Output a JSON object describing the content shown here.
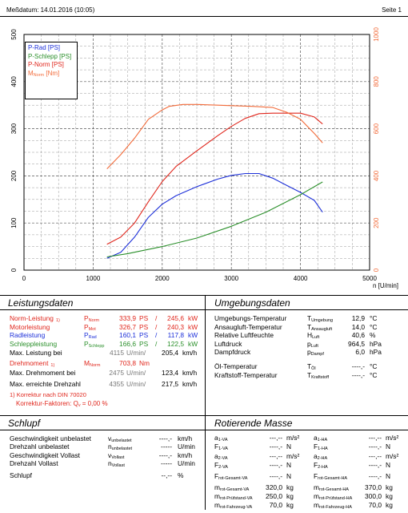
{
  "header": {
    "date_label": "Meßdatum: 14.01.2016 (10:05)",
    "page_label": "Seite 1"
  },
  "chart_data": {
    "type": "line",
    "x_unit_label": "n [U/min]",
    "xlim": [
      0,
      5000
    ],
    "xticks": [
      "0",
      "1000",
      "2000",
      "3000",
      "4000",
      "5000"
    ],
    "ylim_left": [
      0,
      500
    ],
    "yticks_left": [
      "0",
      "100",
      "200",
      "300",
      "400",
      "500"
    ],
    "ylim_right": [
      0,
      1000
    ],
    "yticks_right": [
      "0",
      "200",
      "400",
      "600",
      "800",
      "1000"
    ],
    "grid": true,
    "legend_position": "top-left",
    "series": [
      {
        "name": "P-Rad [PS]",
        "color": "#1c2fd9",
        "axis": "left",
        "x": [
          1200,
          1400,
          1600,
          1800,
          2000,
          2200,
          2500,
          2800,
          3000,
          3200,
          3400,
          3600,
          3800,
          4000,
          4200,
          4320
        ],
        "y": [
          25,
          38,
          70,
          112,
          140,
          158,
          177,
          193,
          201,
          205,
          205,
          195,
          180,
          165,
          148,
          123
        ]
      },
      {
        "name": "P-Schlepp [PS]",
        "color": "#2a8f2a",
        "axis": "left",
        "x": [
          1200,
          1500,
          2000,
          2500,
          3000,
          3500,
          4000,
          4320
        ],
        "y": [
          28,
          35,
          50,
          68,
          93,
          123,
          160,
          187
        ]
      },
      {
        "name": "P-Norm [PS]",
        "color": "#e0261c",
        "axis": "left",
        "x": [
          1200,
          1400,
          1600,
          1800,
          2000,
          2200,
          2500,
          2800,
          3000,
          3200,
          3400,
          3600,
          3800,
          4000,
          4200,
          4320
        ],
        "y": [
          55,
          70,
          100,
          145,
          188,
          220,
          253,
          285,
          305,
          322,
          332,
          333,
          333,
          333,
          325,
          310
        ]
      },
      {
        "name": "M",
        "name_sub": "Norm",
        "name_unit": " [Nm]",
        "color": "#f26b3a",
        "axis": "right",
        "x": [
          1200,
          1400,
          1600,
          1800,
          2000,
          2100,
          2300,
          2500,
          2800,
          3000,
          3300,
          3600,
          3800,
          4000,
          4200,
          4320
        ],
        "y": [
          430,
          490,
          560,
          640,
          680,
          695,
          703,
          703,
          700,
          698,
          695,
          690,
          670,
          640,
          580,
          540
        ]
      }
    ]
  },
  "leistung": {
    "title": "Leistungsdaten",
    "rows": [
      {
        "label": "Norm-Leistung",
        "fn": "1)",
        "sym": "P",
        "sym_sub": "Norm",
        "v1": "333,9",
        "u1": "PS",
        "sep": "/",
        "v2": "245,6",
        "u2": "kW",
        "color": "red"
      },
      {
        "label": "Motorleistung",
        "fn": "",
        "sym": "P",
        "sym_sub": "Mot",
        "v1": "326,7",
        "u1": "PS",
        "sep": "/",
        "v2": "240,3",
        "u2": "kW",
        "color": "red"
      },
      {
        "label": "Radleistung",
        "fn": "",
        "sym": "P",
        "sym_sub": "Rad",
        "v1": "160,1",
        "u1": "PS",
        "sep": "/",
        "v2": "117,8",
        "u2": "kW",
        "color": "blue"
      },
      {
        "label": "Schleppleistung",
        "fn": "",
        "sym": "P",
        "sym_sub": "Schlepp",
        "v1": "166,6",
        "u1": "PS",
        "sep": "/",
        "v2": "122,5",
        "u2": "kW",
        "color": "green"
      }
    ],
    "max_leistung": {
      "label": "Max. Leistung bei",
      "rpm": "4115",
      "rpm_unit": "U/min/",
      "val": "205,4",
      "unit": "km/h"
    },
    "drehmoment": {
      "label": "Drehmoment",
      "fn": "1)",
      "sym": "M",
      "sym_sub": "Norm",
      "val": "703,8",
      "unit": "Nm"
    },
    "max_drehmoment": {
      "label": "Max. Drehmoment bei",
      "rpm": "2475",
      "rpm_unit": "U/min/",
      "val": "123,4",
      "unit": "km/h"
    },
    "max_drehzahl": {
      "label": "Max. erreichte Drehzahl",
      "rpm": "4355",
      "rpm_unit": "U/min/",
      "val": "217,5",
      "unit": "km/h"
    },
    "korrektur": {
      "line1": "1) Korrektur nach DIN 70020",
      "line2_a": "Korrektur-Faktoren: Q",
      "line2_sub": "v",
      "line2_b": " =   0,00 %"
    }
  },
  "umgebung": {
    "title": "Umgebungsdaten",
    "rows": [
      {
        "label": "Umgebungs-Temperatur",
        "sym": "T",
        "sym_sub": "Umgebung",
        "val": "12,9",
        "unit": "°C"
      },
      {
        "label": "Ansaugluft-Temperatur",
        "sym": "T",
        "sym_sub": "Ansaugluft",
        "val": "14,0",
        "unit": "°C"
      },
      {
        "label": "Relative Luftfeuchte",
        "sym": "H",
        "sym_sub": "Luft",
        "val": "40,6",
        "unit": "%"
      },
      {
        "label": "Luftdruck",
        "sym": "p",
        "sym_sub": "Luft",
        "val": "964,5",
        "unit": "hPa"
      },
      {
        "label": "Dampfdruck",
        "sym": "p",
        "sym_sub": "Dampf",
        "val": "6,0",
        "unit": "hPa"
      },
      {
        "label": "Öl-Temperatur",
        "sym": "T",
        "sym_sub": "Öl",
        "val": "----,-",
        "unit": "°C"
      },
      {
        "label": "Kraftstoff-Temperatur",
        "sym": "T",
        "sym_sub": "Kraftstoff",
        "val": "----,-",
        "unit": "°C"
      }
    ]
  },
  "schlupf": {
    "title": "Schlupf",
    "rows": [
      {
        "label": "Geschwindigkeit unbelastet",
        "sym": "v",
        "sym_sub": "unbelastet",
        "val": "----,-",
        "unit": "km/h"
      },
      {
        "label": "Drehzahl unbelastet",
        "sym": "n",
        "sym_sub": "unbelastet",
        "val": "-----",
        "unit": "U/min"
      },
      {
        "label": "Geschwindigkeit Vollast",
        "sym": "v",
        "sym_sub": "Vollast",
        "val": "----,-",
        "unit": "km/h"
      },
      {
        "label": "Drehzahl Vollast",
        "sym": "n",
        "sym_sub": "Vollast",
        "val": "-----",
        "unit": "U/min"
      },
      {
        "label": "Schlupf",
        "sym": "",
        "sym_sub": "",
        "val": "--,--",
        "unit": "%"
      }
    ]
  },
  "masse": {
    "title": "Rotierende Masse",
    "left": [
      {
        "sym": "a",
        "sym_sub": "1-VA",
        "val": "---,--",
        "unit": "m/s²"
      },
      {
        "sym": "F",
        "sym_sub": "1-VA",
        "val": "----,-",
        "unit": "N"
      },
      {
        "sym": "a",
        "sym_sub": "2-VA",
        "val": "---,--",
        "unit": "m/s²"
      },
      {
        "sym": "F",
        "sym_sub": "2-VA",
        "val": "----,-",
        "unit": "N"
      },
      {
        "sym": "F",
        "sym_sub": "rot-Gesamt-VA",
        "val": "----,-",
        "unit": "N"
      },
      {
        "sym": "m",
        "sym_sub": "rot-Gesamt-VA",
        "val": "320,0",
        "unit": "kg"
      },
      {
        "sym": "m",
        "sym_sub": "rot-Prüfstand-VA",
        "val": "250,0",
        "unit": "kg"
      },
      {
        "sym": "m",
        "sym_sub": "rot-Fahrzeug-VA",
        "val": "70,0",
        "unit": "kg"
      }
    ],
    "right": [
      {
        "sym": "a",
        "sym_sub": "1-HA",
        "val": "---,--",
        "unit": "m/s²"
      },
      {
        "sym": "F",
        "sym_sub": "1-HA",
        "val": "----,-",
        "unit": "N"
      },
      {
        "sym": "a",
        "sym_sub": "2-HA",
        "val": "---,--",
        "unit": "m/s²"
      },
      {
        "sym": "F",
        "sym_sub": "2-HA",
        "val": "----,-",
        "unit": "N"
      },
      {
        "sym": "F",
        "sym_sub": "rot-Gesamt-HA",
        "val": "----,-",
        "unit": "N"
      },
      {
        "sym": "m",
        "sym_sub": "rot-Gesamt-HA",
        "val": "370,0",
        "unit": "kg"
      },
      {
        "sym": "m",
        "sym_sub": "rot-Prüfstand-HA",
        "val": "300,0",
        "unit": "kg"
      },
      {
        "sym": "m",
        "sym_sub": "rot-Fahrzeug-HA",
        "val": "70,0",
        "unit": "kg"
      }
    ]
  }
}
